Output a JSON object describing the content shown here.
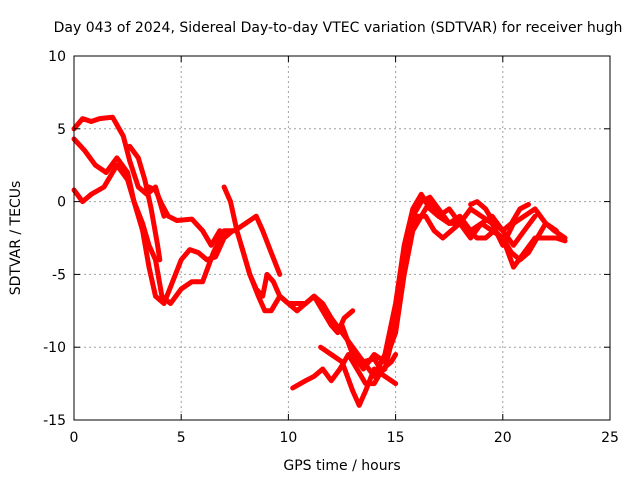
{
  "chart_data": {
    "type": "line",
    "title": "Day 043 of 2024, Sidereal Day-to-day VTEC variation (SDTVAR) for receiver hugh",
    "xlabel": "GPS time / hours",
    "ylabel": "SDTVAR / TECUs",
    "xlim": [
      0,
      25
    ],
    "ylim": [
      -15,
      10
    ],
    "xticks": [
      "0",
      "5",
      "10",
      "15",
      "20",
      "25"
    ],
    "yticks": [
      "10",
      "5",
      "0",
      "-5",
      "-10",
      "-15"
    ],
    "grid": true,
    "legend": "none",
    "color": "#ff0000",
    "series": [
      {
        "x": [
          0,
          0.4,
          0.8,
          1.2,
          1.8,
          2.3,
          2.6,
          3.0,
          3.4,
          3.8,
          4.2
        ],
        "y": [
          5.0,
          5.7,
          5.5,
          5.7,
          5.8,
          4.5,
          2.8,
          1.0,
          0.5,
          1.0,
          -1.0
        ]
      },
      {
        "x": [
          0,
          0.5,
          1.0,
          1.5,
          2.0,
          2.5,
          2.8,
          3.2,
          3.5,
          3.8,
          4.1,
          4.5,
          5.0,
          5.5,
          6.0,
          6.5,
          7.0,
          7.5,
          8.0,
          8.5,
          8.8,
          9.2,
          9.6
        ],
        "y": [
          4.3,
          3.5,
          2.5,
          2.0,
          3.0,
          2.0,
          0.0,
          -1.5,
          -3.0,
          -4.0,
          -6.5,
          -7.0,
          -6.0,
          -5.5,
          -5.5,
          -3.5,
          -2.0,
          -2.0,
          -1.5,
          -1.0,
          -2.0,
          -3.5,
          -5.0
        ]
      },
      {
        "x": [
          0,
          0.4,
          0.8,
          1.4,
          2.0,
          2.5,
          2.8,
          3.2,
          3.5,
          3.8,
          4.2,
          4.6,
          5.0,
          5.4,
          5.8,
          6.2,
          6.6,
          7.0,
          7.4
        ],
        "y": [
          0.8,
          0.0,
          0.5,
          1.0,
          2.5,
          1.5,
          0.0,
          -2.0,
          -4.5,
          -6.5,
          -7.0,
          -5.5,
          -4.0,
          -3.3,
          -3.5,
          -4.0,
          -3.8,
          -2.5,
          -2.0
        ]
      },
      {
        "x": [
          2.6,
          3.0,
          3.3,
          3.6,
          3.9,
          4.0
        ],
        "y": [
          3.8,
          3.0,
          1.5,
          -0.5,
          -3.0,
          -4.0
        ]
      },
      {
        "x": [
          3.5,
          3.8,
          4.1,
          4.4,
          4.8,
          5.5,
          6.0,
          6.4,
          6.8
        ],
        "y": [
          1.0,
          0.8,
          -0.2,
          -1.0,
          -1.3,
          -1.2,
          -2.0,
          -3.0,
          -2.0
        ]
      },
      {
        "x": [
          7.0,
          7.3,
          7.6,
          7.9,
          8.2,
          8.5,
          8.8,
          9.0,
          9.3,
          9.6,
          10.0,
          10.4,
          10.8,
          11.2,
          11.6,
          12.0,
          12.3,
          12.6,
          13.0
        ],
        "y": [
          1.0,
          0.0,
          -2.0,
          -3.5,
          -5.0,
          -6.0,
          -6.5,
          -5.0,
          -5.5,
          -6.5,
          -7.0,
          -7.5,
          -7.0,
          -6.5,
          -7.5,
          -8.5,
          -9.0,
          -8.0,
          -7.5
        ]
      },
      {
        "x": [
          7.8,
          8.2,
          8.6,
          8.9,
          9.2,
          9.6,
          10.0,
          10.5,
          10.8,
          11.2,
          11.6,
          12.0,
          12.5,
          13.0,
          13.5,
          14.0,
          14.3
        ],
        "y": [
          -3.0,
          -5.0,
          -6.5,
          -7.5,
          -7.5,
          -6.5,
          -7.0,
          -7.0,
          -7.0,
          -6.5,
          -7.0,
          -8.0,
          -9.0,
          -10.0,
          -11.0,
          -10.8,
          -11.5
        ]
      },
      {
        "x": [
          10.2,
          10.8,
          11.2,
          11.6,
          12.0,
          12.4,
          12.8,
          13.2,
          13.6,
          14.0,
          14.4,
          14.8,
          15.0
        ],
        "y": [
          -12.8,
          -12.3,
          -12.0,
          -11.5,
          -12.3,
          -11.5,
          -10.5,
          -11.5,
          -12.5,
          -12.5,
          -11.5,
          -11.0,
          -10.5
        ]
      },
      {
        "x": [
          11.5,
          12.0,
          12.5,
          13.0,
          13.3,
          13.6,
          14.0,
          14.5,
          15.0
        ],
        "y": [
          -10.0,
          -10.5,
          -11.0,
          -13.0,
          -14.0,
          -13.0,
          -11.5,
          -12.0,
          -12.5
        ]
      },
      {
        "x": [
          12.5,
          13.0,
          13.5,
          14.0,
          14.5,
          15.0,
          15.4,
          15.8,
          16.2,
          16.6,
          17.0,
          17.5,
          18.0,
          18.5,
          19.0,
          19.5,
          20.0,
          20.5,
          21.0,
          21.5,
          22.0,
          22.5,
          22.9
        ],
        "y": [
          -8.5,
          -10.5,
          -11.5,
          -10.5,
          -11.0,
          -9.0,
          -5.0,
          -2.0,
          -1.0,
          0.0,
          -1.0,
          -1.5,
          -1.5,
          -2.5,
          -1.5,
          -2.0,
          -2.5,
          -4.5,
          -3.5,
          -2.5,
          -2.5,
          -2.5,
          -2.7
        ]
      },
      {
        "x": [
          13.5,
          14.0,
          14.5,
          15.0,
          15.4,
          15.8,
          16.2,
          16.6,
          17.0,
          17.5,
          18.0,
          18.5,
          19.0,
          19.5,
          20.0,
          20.5,
          21.0,
          21.5
        ],
        "y": [
          -11.0,
          -12.0,
          -11.5,
          -8.5,
          -4.0,
          -1.0,
          0.0,
          0.3,
          -0.5,
          -1.5,
          -1.0,
          -2.0,
          -1.5,
          -1.0,
          -2.0,
          -3.0,
          -2.0,
          -1.0
        ]
      },
      {
        "x": [
          14.0,
          14.5,
          15.0,
          15.4,
          15.8,
          16.2,
          16.6,
          17.0,
          17.5,
          18.0,
          18.5,
          19.0,
          19.5,
          20.0,
          20.5,
          21.0,
          21.5,
          22.0,
          22.5
        ],
        "y": [
          -12.0,
          -10.5,
          -7.0,
          -3.0,
          -0.5,
          0.5,
          -0.5,
          -1.0,
          -0.5,
          -1.5,
          -0.5,
          -1.0,
          -1.5,
          -3.0,
          -1.5,
          -1.0,
          -0.5,
          -1.5,
          -2.0
        ]
      },
      {
        "x": [
          15.5,
          16.0,
          16.4,
          16.8,
          17.2,
          17.6,
          18.0,
          18.4,
          18.8,
          19.2,
          19.6,
          20.0,
          20.4,
          20.8,
          21.2,
          21.6,
          22.0,
          22.4,
          22.9
        ],
        "y": [
          -2.5,
          -1.0,
          -1.0,
          -2.0,
          -2.5,
          -2.0,
          -1.5,
          -2.0,
          -2.5,
          -2.5,
          -2.0,
          -2.5,
          -3.5,
          -4.0,
          -3.5,
          -2.5,
          -1.5,
          -2.0,
          -2.5
        ]
      },
      {
        "x": [
          18.5,
          18.8,
          19.2,
          19.6,
          20.0,
          20.4,
          20.8,
          21.2
        ],
        "y": [
          -0.2,
          0.0,
          -0.5,
          -1.5,
          -2.0,
          -1.5,
          -0.5,
          -0.2
        ]
      }
    ]
  }
}
